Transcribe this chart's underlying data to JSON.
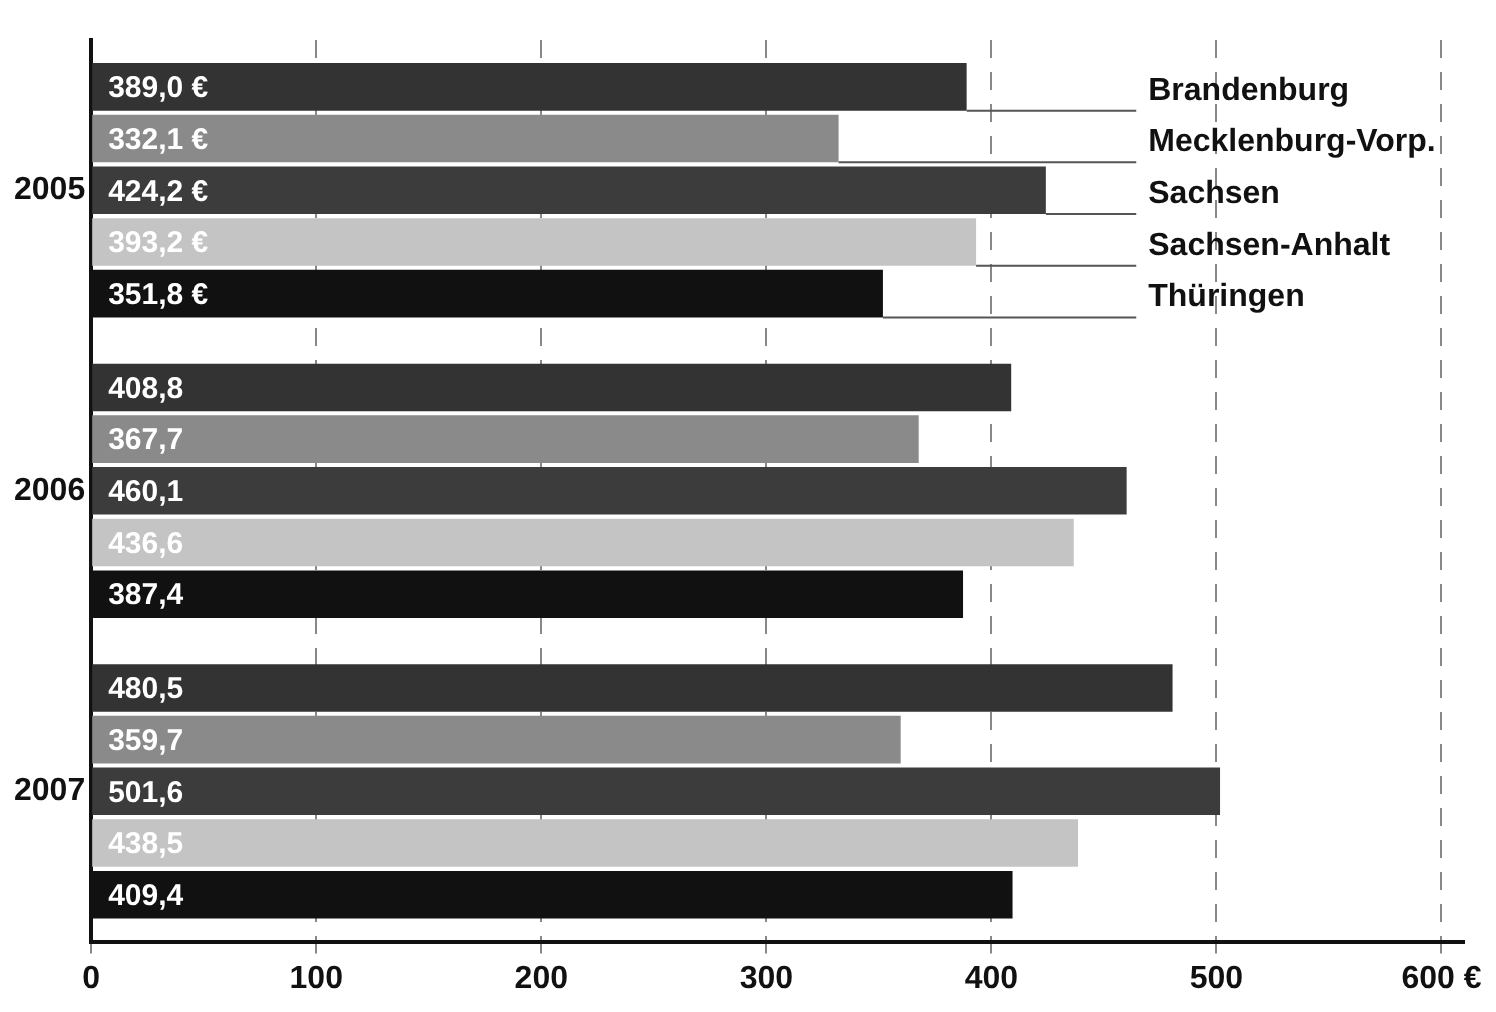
{
  "chart_data": {
    "type": "bar",
    "orientation": "horizontal",
    "categories": [
      "2005",
      "2006",
      "2007"
    ],
    "series": [
      {
        "name": "Brandenburg",
        "color": "#333333",
        "values": [
          389.0,
          408.8,
          480.5
        ],
        "value_labels": [
          "389,0 €",
          "408,8",
          "480,5"
        ]
      },
      {
        "name": "Mecklenburg-Vorp.",
        "color": "#8a8a8a",
        "values": [
          332.1,
          367.7,
          359.7
        ],
        "value_labels": [
          "332,1 €",
          "367,7",
          "359,7"
        ]
      },
      {
        "name": "Sachsen",
        "color": "#3c3c3c",
        "values": [
          424.2,
          460.1,
          501.6
        ],
        "value_labels": [
          "424,2 €",
          "460,1",
          "501,6"
        ]
      },
      {
        "name": "Sachsen-Anhalt",
        "color": "#c4c4c4",
        "values": [
          393.2,
          436.6,
          438.5
        ],
        "value_labels": [
          "393,2 €",
          "436,6",
          "438,5"
        ]
      },
      {
        "name": "Thüringen",
        "color": "#111111",
        "values": [
          351.8,
          387.4,
          409.4
        ],
        "value_labels": [
          "351,8 €",
          "387,4",
          "409,4"
        ]
      }
    ],
    "xlim": [
      0,
      610
    ],
    "xticks": [
      0,
      100,
      200,
      300,
      400,
      500,
      {
        "value": 600,
        "label": "600 €"
      }
    ],
    "grid": "x",
    "legend": false
  }
}
